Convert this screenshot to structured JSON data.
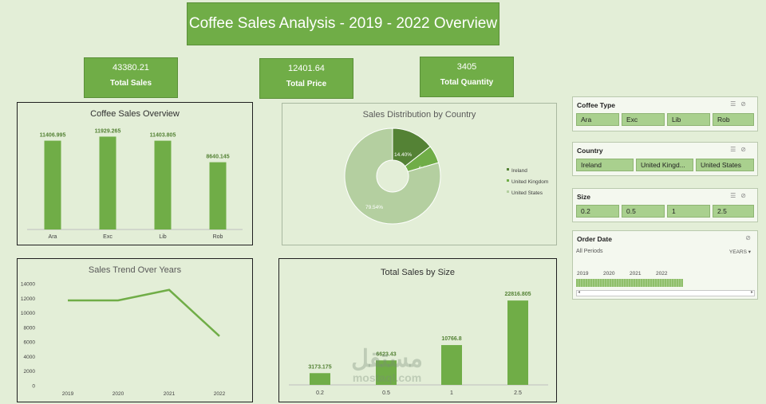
{
  "title": "Coffee Sales Analysis - 2019 - 2022 Overview",
  "kpis": {
    "total_sales": {
      "value": "43380.21",
      "label": "Total Sales"
    },
    "total_price": {
      "value": "12401.64",
      "label": "Total Price"
    },
    "total_quantity": {
      "value": "3405",
      "label": "Total Quantity"
    }
  },
  "colors": {
    "accent": "#70ad47",
    "background": "#e3eed7",
    "pie_dark": "#548235",
    "pie_mid": "#70ad47",
    "pie_light": "#b4cfa0"
  },
  "chart_data": [
    {
      "id": "coffee_overview",
      "type": "bar",
      "title": "Coffee Sales Overview",
      "categories": [
        "Ara",
        "Exc",
        "Lib",
        "Rob"
      ],
      "values": [
        11406.995,
        11929.265,
        11403.805,
        8640.145
      ],
      "data_labels": [
        "11406.995",
        "11929.265",
        "11403.805",
        "8640.145"
      ],
      "ylim": [
        0,
        13000
      ],
      "grid": false
    },
    {
      "id": "country_distribution",
      "type": "pie",
      "title": "Sales Distribution by Country",
      "labels": [
        "Ireland",
        "United Kingdom",
        "United States"
      ],
      "values": [
        14.4,
        6.06,
        79.54
      ],
      "data_labels": [
        "14.40%",
        "6.06%",
        "79.54%"
      ],
      "legend": "right"
    },
    {
      "id": "sales_trend",
      "type": "line",
      "title": "Sales Trend Over Years",
      "x": [
        "2019",
        "2020",
        "2021",
        "2022"
      ],
      "y": [
        11700,
        11700,
        13150,
        6800
      ],
      "ylim": [
        0,
        14000
      ],
      "yticks": [
        "14000",
        "12000",
        "10000",
        "8000",
        "6000",
        "4000",
        "2000",
        "0"
      ],
      "grid": false
    },
    {
      "id": "sales_by_size",
      "type": "bar",
      "title": "Total Sales by Size",
      "categories": [
        "0.2",
        "0.5",
        "1",
        "2.5"
      ],
      "values": [
        3173.175,
        6623.43,
        10766.8,
        22816.805
      ],
      "data_labels": [
        "3173.175",
        "6623.43",
        "10766.8",
        "22816.805"
      ],
      "ylim": [
        0,
        25000
      ],
      "grid": false
    }
  ],
  "slicers": {
    "coffee_type": {
      "title": "Coffee Type",
      "items": [
        "Ara",
        "Exc",
        "Lib",
        "Rob"
      ]
    },
    "country": {
      "title": "Country",
      "items": [
        "Ireland",
        "United Kingd...",
        "United States"
      ]
    },
    "size": {
      "title": "Size",
      "items": [
        "0.2",
        "0.5",
        "1",
        "2.5"
      ]
    },
    "order_date": {
      "title": "Order Date",
      "period_label": "All Periods",
      "level": "YEARS",
      "years": [
        "2019",
        "2020",
        "2021",
        "2022"
      ]
    }
  },
  "watermark": {
    "arabic": "مستقل",
    "latin": "mostaql.com"
  }
}
